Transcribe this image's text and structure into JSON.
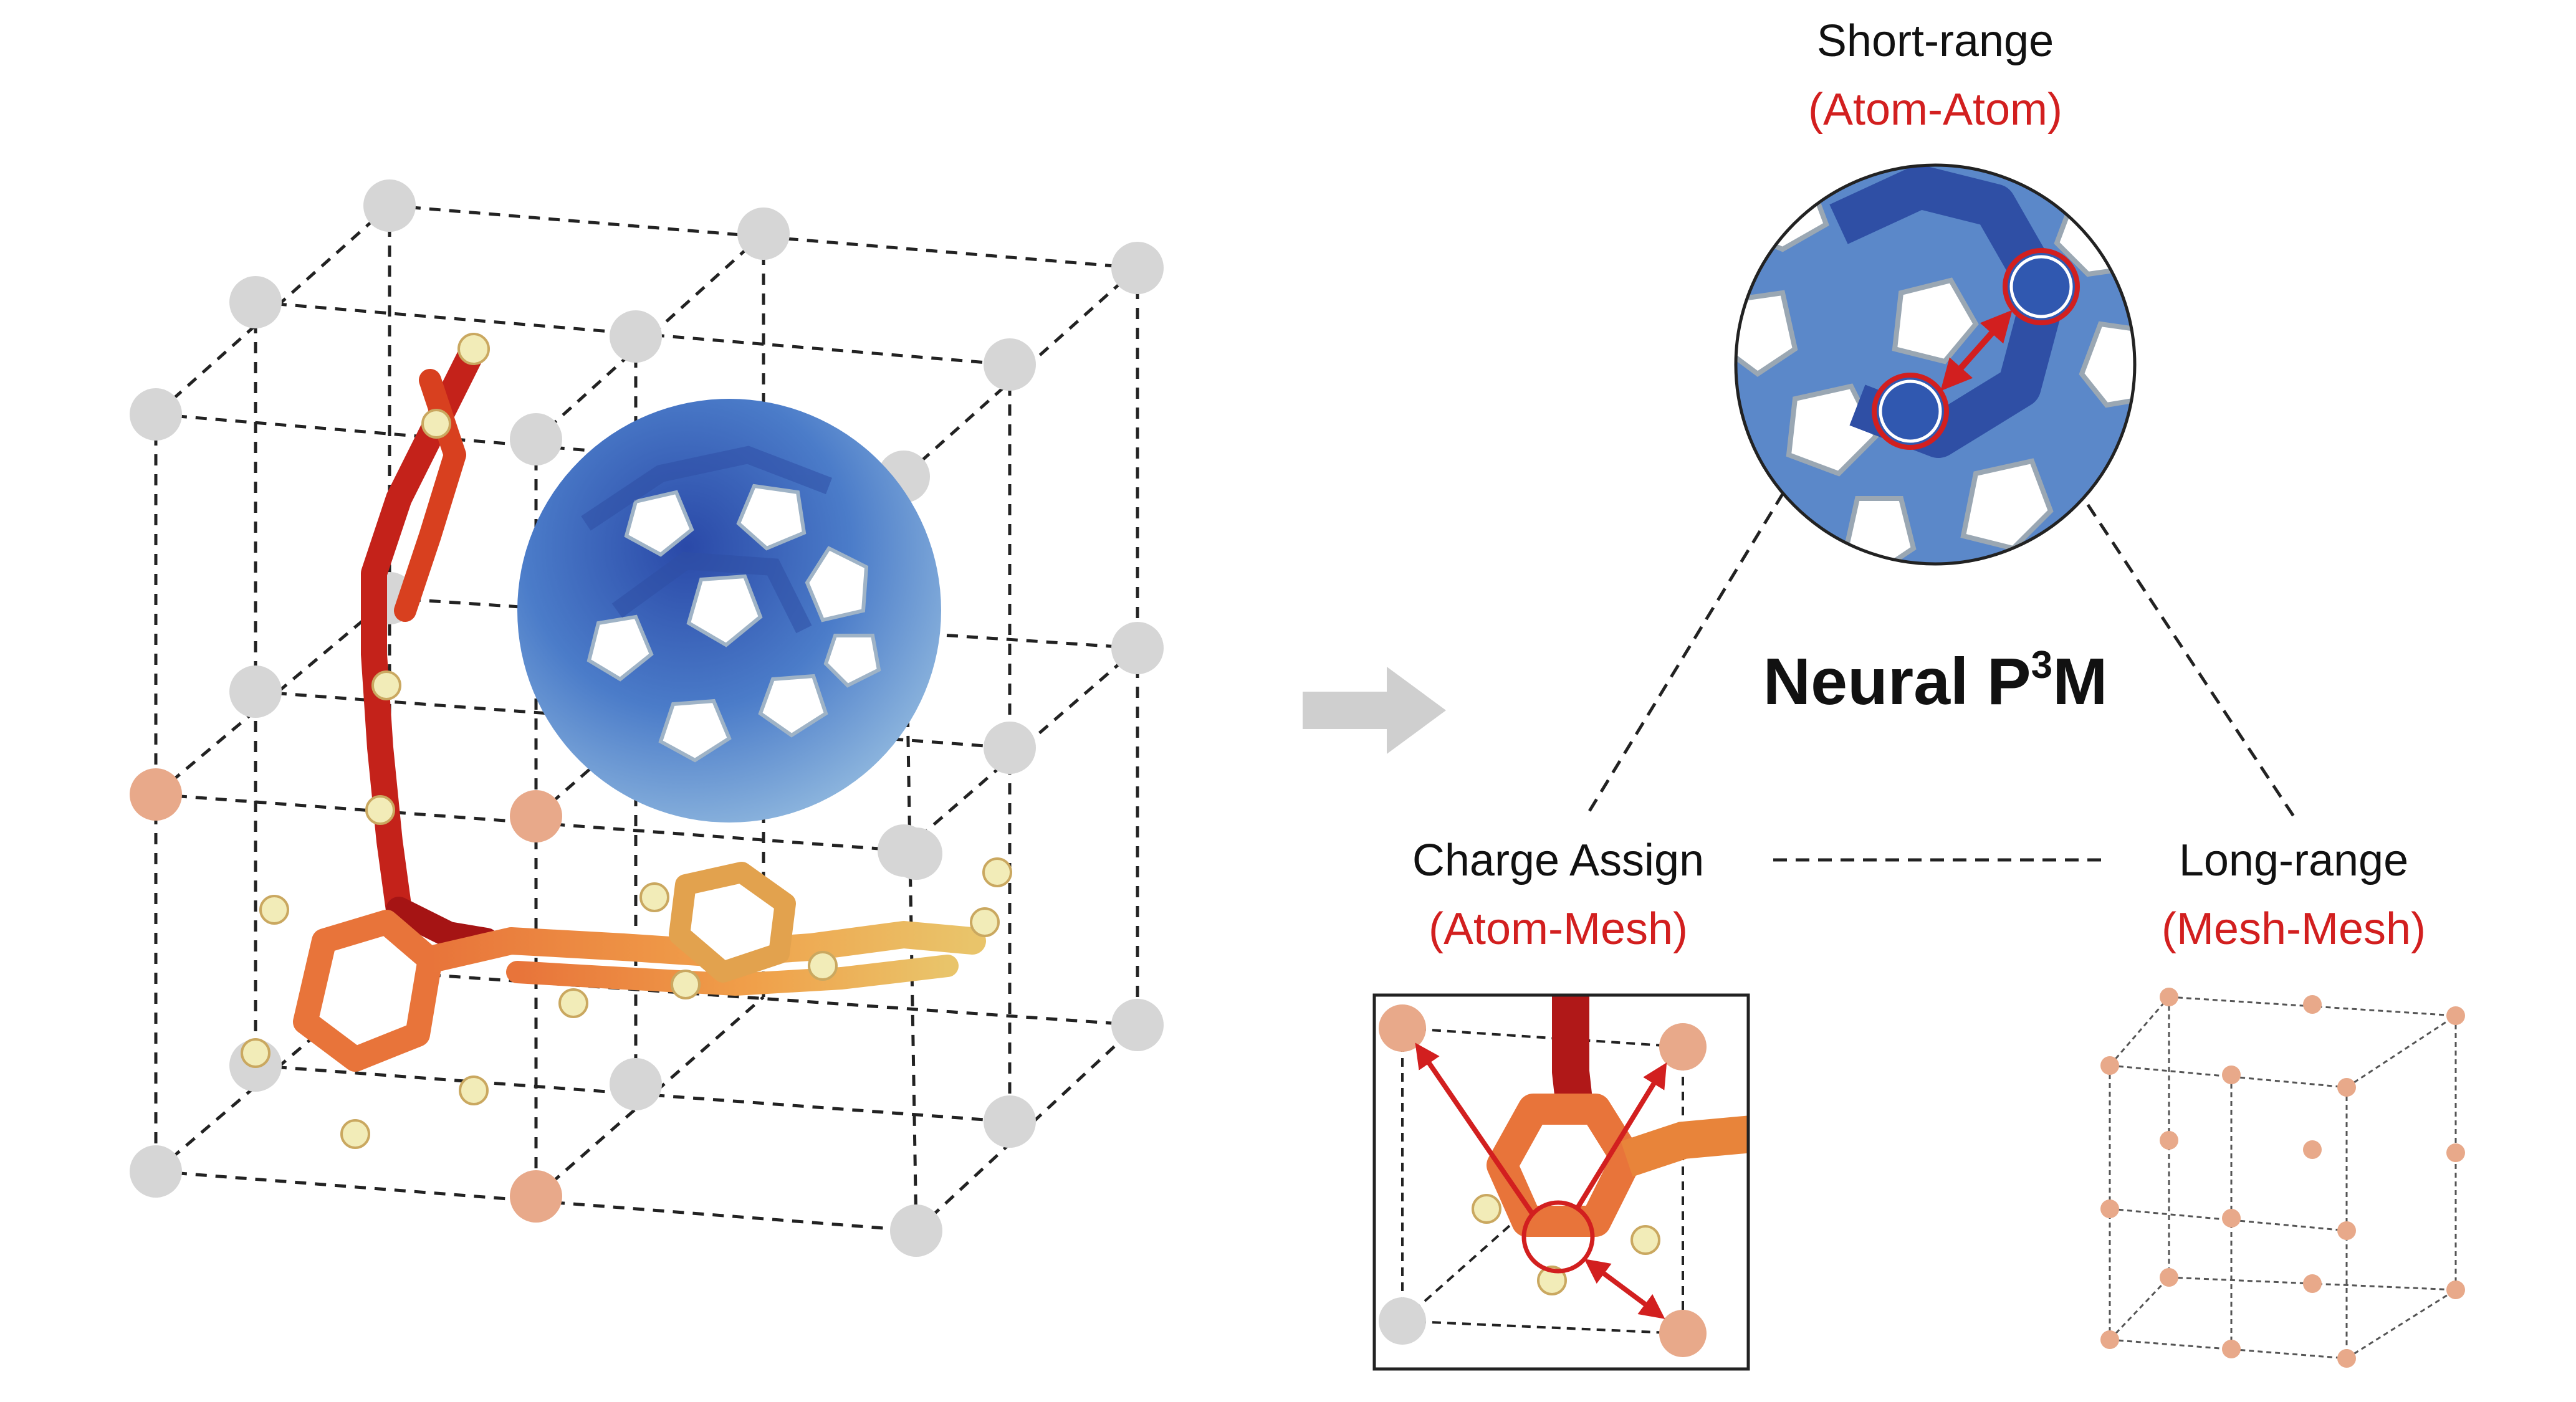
{
  "labels": {
    "short_range": "Short-range",
    "atom_atom": "(Atom-Atom)",
    "title_main": "Neural P",
    "title_sup": "3",
    "title_end": "M",
    "charge_assign": "Charge Assign",
    "atom_mesh": "(Atom-Mesh)",
    "long_range": "Long-range",
    "mesh_mesh": "(Mesh-Mesh)"
  },
  "colors": {
    "grid_node": "#d6d6d6",
    "mesh_node_highlight": "#e8a98a",
    "arrow": "#d21f1f",
    "accent_text": "#d21f1f",
    "blue_molecule": "#3c6fc4",
    "red_molecule": "#c4221a",
    "orange_molecule": "#e8743a",
    "yellow_molecule": "#e9b65c",
    "hydrogen": "#f2ecb8"
  }
}
